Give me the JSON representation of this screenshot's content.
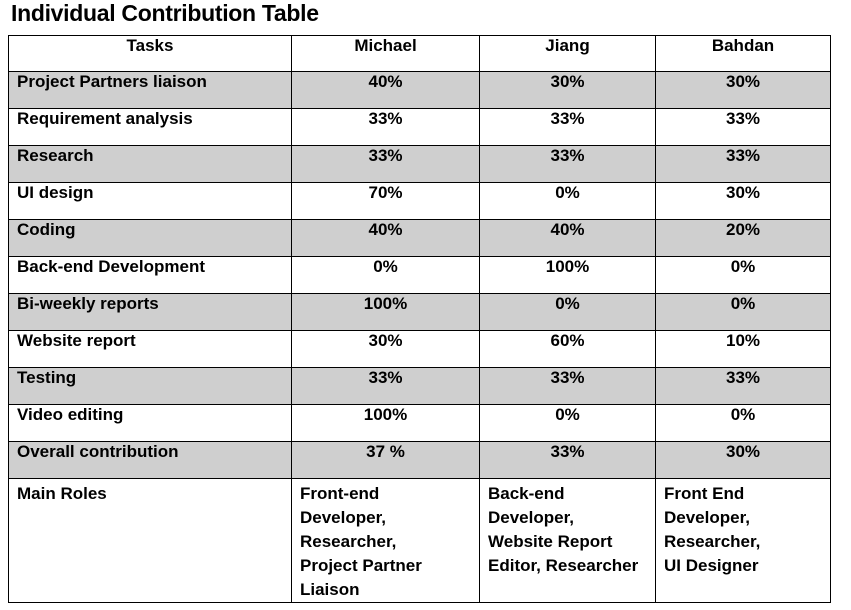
{
  "title": "Individual Contribution Table",
  "headers": [
    "Tasks",
    "Michael",
    "Jiang",
    "Bahdan"
  ],
  "rows": [
    {
      "task": "Project Partners liaison",
      "values": [
        "40%",
        "30%",
        "30%"
      ]
    },
    {
      "task": "Requirement analysis",
      "values": [
        "33%",
        "33%",
        "33%"
      ]
    },
    {
      "task": "Research",
      "values": [
        "33%",
        "33%",
        "33%"
      ]
    },
    {
      "task": "UI design",
      "values": [
        "70%",
        "0%",
        "30%"
      ]
    },
    {
      "task": "Coding",
      "values": [
        "40%",
        "40%",
        "20%"
      ]
    },
    {
      "task": "Back-end Development",
      "values": [
        "0%",
        "100%",
        "0%"
      ]
    },
    {
      "task": "Bi-weekly reports",
      "values": [
        "100%",
        "0%",
        "0%"
      ]
    },
    {
      "task": "Website report",
      "values": [
        "30%",
        "60%",
        "10%"
      ]
    },
    {
      "task": "Testing",
      "values": [
        "33%",
        "33%",
        "33%"
      ]
    },
    {
      "task": "Video editing",
      "values": [
        "100%",
        "0%",
        "0%"
      ]
    },
    {
      "task": "Overall contribution",
      "values": [
        "37 %",
        "33%",
        "30%"
      ]
    }
  ],
  "roles": {
    "label": "Main Roles",
    "michael": [
      "Front-end",
      "Developer,",
      "Researcher,",
      "Project Partner",
      "Liaison"
    ],
    "jiang": [
      "Back-end",
      "Developer,",
      "Website Report",
      "Editor, Researcher"
    ],
    "bahdan": [
      "Front End",
      "Developer,",
      "Researcher,",
      "UI Designer"
    ]
  },
  "colors": {
    "shaded_row": "#cfcfcf",
    "border": "#000000"
  }
}
